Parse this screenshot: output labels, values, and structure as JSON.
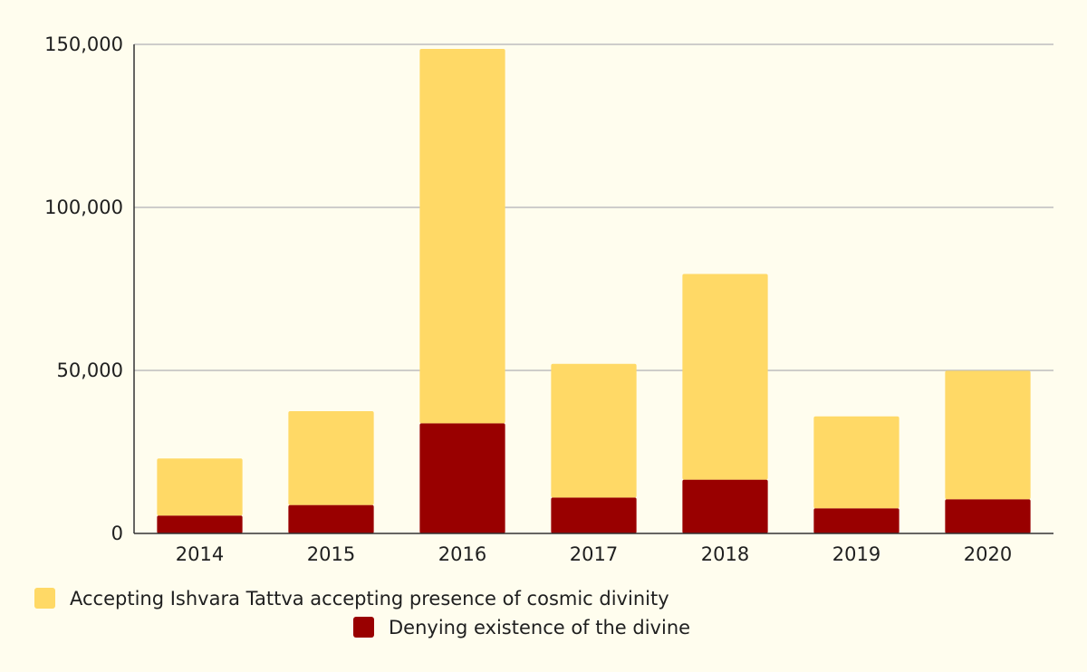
{
  "chart_data": {
    "type": "bar",
    "stacked": true,
    "categories": [
      "2014",
      "2015",
      "2016",
      "2017",
      "2018",
      "2019",
      "2020"
    ],
    "series": [
      {
        "name": "Denying existence of the divine",
        "color": "#990000",
        "values": [
          5500,
          8700,
          33800,
          11000,
          16500,
          7700,
          10500
        ]
      },
      {
        "name": "Accepting Ishvara Tattva accepting presence of cosmic divinity",
        "color": "#FFD966",
        "values": [
          17500,
          28800,
          114800,
          41000,
          63100,
          28200,
          39400
        ]
      }
    ],
    "ylim": [
      0,
      150000
    ],
    "yticks": [
      0,
      50000,
      100000,
      150000
    ],
    "ytick_labels": [
      "0",
      "50,000",
      "100,000",
      "150,000"
    ],
    "grid": true,
    "legend_position": "bottom",
    "background_color": "#FFFDEE",
    "title": "",
    "xlabel": "",
    "ylabel": ""
  }
}
